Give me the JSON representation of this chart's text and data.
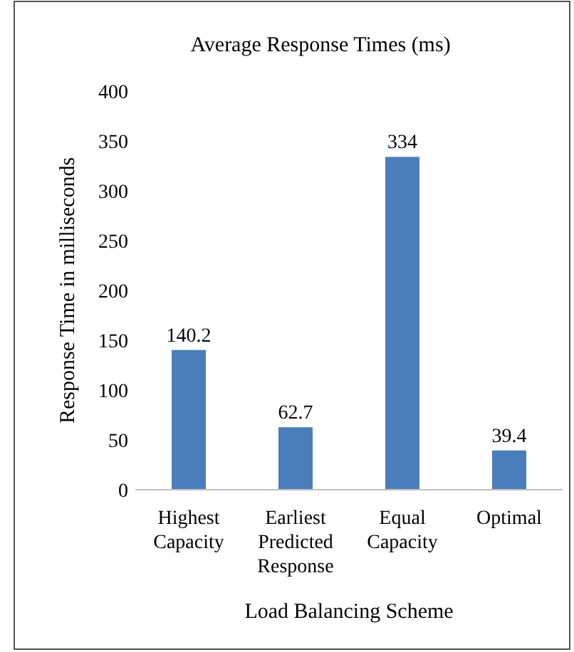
{
  "chart_data": {
    "type": "bar",
    "title": "Average Response Times (ms)",
    "xlabel": "Load Balancing Scheme",
    "ylabel": "Response Time in milliseconds",
    "categories": [
      "Highest Capacity",
      "Earliest Predicted Response",
      "Equal Capacity",
      "Optimal"
    ],
    "values": [
      140.2,
      62.7,
      334,
      39.4
    ],
    "color": "#4a7ebb",
    "data_labels": true,
    "ylim": [
      0,
      400
    ],
    "yticks": [
      0,
      50,
      100,
      150,
      200,
      250,
      300,
      350,
      400
    ],
    "grid": false
  }
}
